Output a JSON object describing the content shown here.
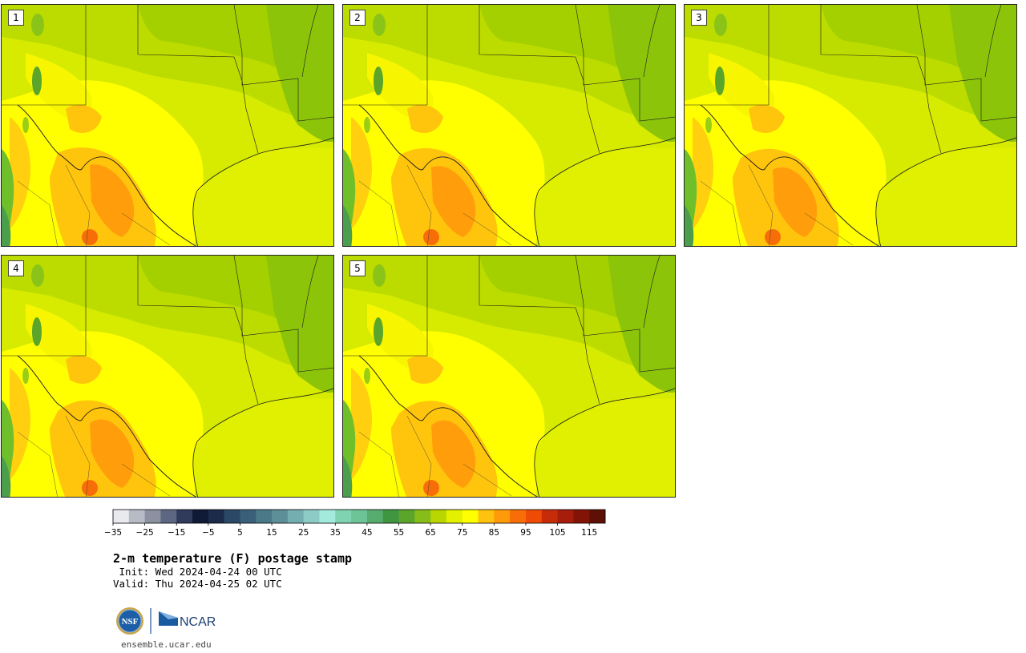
{
  "panels": [
    {
      "label": "1"
    },
    {
      "label": "2"
    },
    {
      "label": "3"
    },
    {
      "label": "4"
    },
    {
      "label": "5"
    }
  ],
  "colorbar": {
    "colors": [
      "#e8eaee",
      "#b7bbc5",
      "#8b91a1",
      "#5e6781",
      "#2f3a5c",
      "#0f1a36",
      "#1c2b4a",
      "#2b4966",
      "#3a5f78",
      "#4a7a88",
      "#5d8f99",
      "#74aeb1",
      "#8ccbc6",
      "#a3eadc",
      "#7fd3b0",
      "#6cc497",
      "#56ad6f",
      "#3f9540",
      "#5aa52a",
      "#86bd18",
      "#b9d600",
      "#e3f000",
      "#ffff00",
      "#ffc20e",
      "#ff9a0a",
      "#f76e08",
      "#ef4b05",
      "#c62c0a",
      "#a61d0b",
      "#821307",
      "#5e1006"
    ],
    "ticks": [
      "−35",
      "−25",
      "−15",
      "−5",
      "5",
      "15",
      "25",
      "35",
      "45",
      "55",
      "65",
      "75",
      "85",
      "95",
      "105",
      "115"
    ]
  },
  "title": "2-m temperature (F) postage stamp",
  "init": " Init: Wed 2024-04-24 00 UTC",
  "valid": "Valid: Thu 2024-04-25 02 UTC",
  "logo": {
    "nsf": "NSF",
    "ncar": "NCAR"
  },
  "site": "ensemble.ucar.edu"
}
